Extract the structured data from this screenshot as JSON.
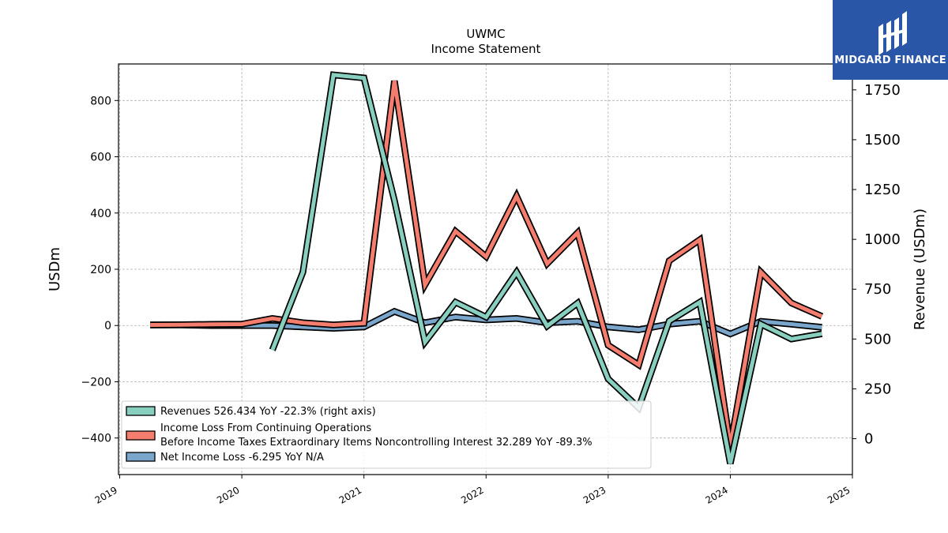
{
  "brand": {
    "name": "MIDGARD FINANCE",
    "bg_color": "#2a56a8",
    "icon": "midgard-logo-icon"
  },
  "chart_data": {
    "type": "line",
    "title": "UWMC",
    "subtitle": "Income Statement",
    "ylabel": "USDm",
    "ylabel_right": "Revenue (USDm)",
    "ylim": [
      -530,
      930
    ],
    "ylim_right": [
      -180,
      1880
    ],
    "yticks": [
      -400,
      -200,
      0,
      200,
      400,
      600,
      800
    ],
    "yticks_right": [
      0,
      250,
      500,
      750,
      1000,
      1250,
      1500,
      1750
    ],
    "xlim": [
      2018.99,
      2025.0
    ],
    "xticks": [
      2019,
      2020,
      2021,
      2022,
      2023,
      2024,
      2025
    ],
    "grid": true,
    "legend_position": "lower-left",
    "series": [
      {
        "name": "Revenues",
        "legend_label": "Revenues  526.434 YoY -22.3% (right axis)",
        "color": "#88cfc0",
        "axis": "right",
        "x": [
          2020.25,
          2020.5,
          2020.75,
          2021.0,
          2021.25,
          2021.5,
          2021.75,
          2022.0,
          2022.25,
          2022.5,
          2022.75,
          2023.0,
          2023.25,
          2023.5,
          2023.75,
          2024.0,
          2024.25,
          2024.5,
          2024.75
        ],
        "values": [
          445,
          835,
          1825,
          1810,
          1195,
          485,
          685,
          610,
          835,
          565,
          680,
          300,
          155,
          590,
          685,
          -125,
          575,
          500,
          526.434
        ]
      },
      {
        "name": "Income Loss From Continuing Operations Before Income Taxes Extraordinary Items Noncontrolling Interest",
        "legend_label_line1": "Income Loss From Continuing Operations",
        "legend_label_line2": "Before Income Taxes Extraordinary Items Noncontrolling Interest  32.289 YoY -89.3%",
        "color": "#f47d6d",
        "axis": "left",
        "x": [
          2019.25,
          2019.5,
          2019.75,
          2020.0,
          2020.25,
          2020.5,
          2020.75,
          2021.0,
          2021.25,
          2021.5,
          2021.75,
          2022.0,
          2022.25,
          2022.5,
          2022.75,
          2023.0,
          2023.25,
          2023.5,
          2023.75,
          2024.0,
          2024.25,
          2024.5,
          2024.75
        ],
        "values": [
          2,
          3,
          4,
          5,
          25,
          10,
          2,
          8,
          870,
          145,
          335,
          245,
          460,
          220,
          330,
          -70,
          -140,
          230,
          305,
          -430,
          190,
          80,
          32.289
        ]
      },
      {
        "name": "Net Income Loss",
        "legend_label": "Net Income Loss  -6.295 YoY N/A",
        "color": "#7aa6cc",
        "axis": "left",
        "x": [
          2019.25,
          2019.5,
          2019.75,
          2020.0,
          2020.25,
          2020.5,
          2020.75,
          2021.0,
          2021.25,
          2021.5,
          2021.75,
          2022.0,
          2022.25,
          2022.5,
          2022.75,
          2023.0,
          2023.25,
          2023.5,
          2023.75,
          2024.0,
          2024.25,
          2024.5,
          2024.75
        ],
        "values": [
          2,
          2,
          0,
          0,
          0,
          -5,
          -10,
          -5,
          50,
          10,
          30,
          20,
          25,
          10,
          15,
          -5,
          -15,
          5,
          15,
          -30,
          15,
          5,
          -6.295
        ]
      }
    ]
  }
}
